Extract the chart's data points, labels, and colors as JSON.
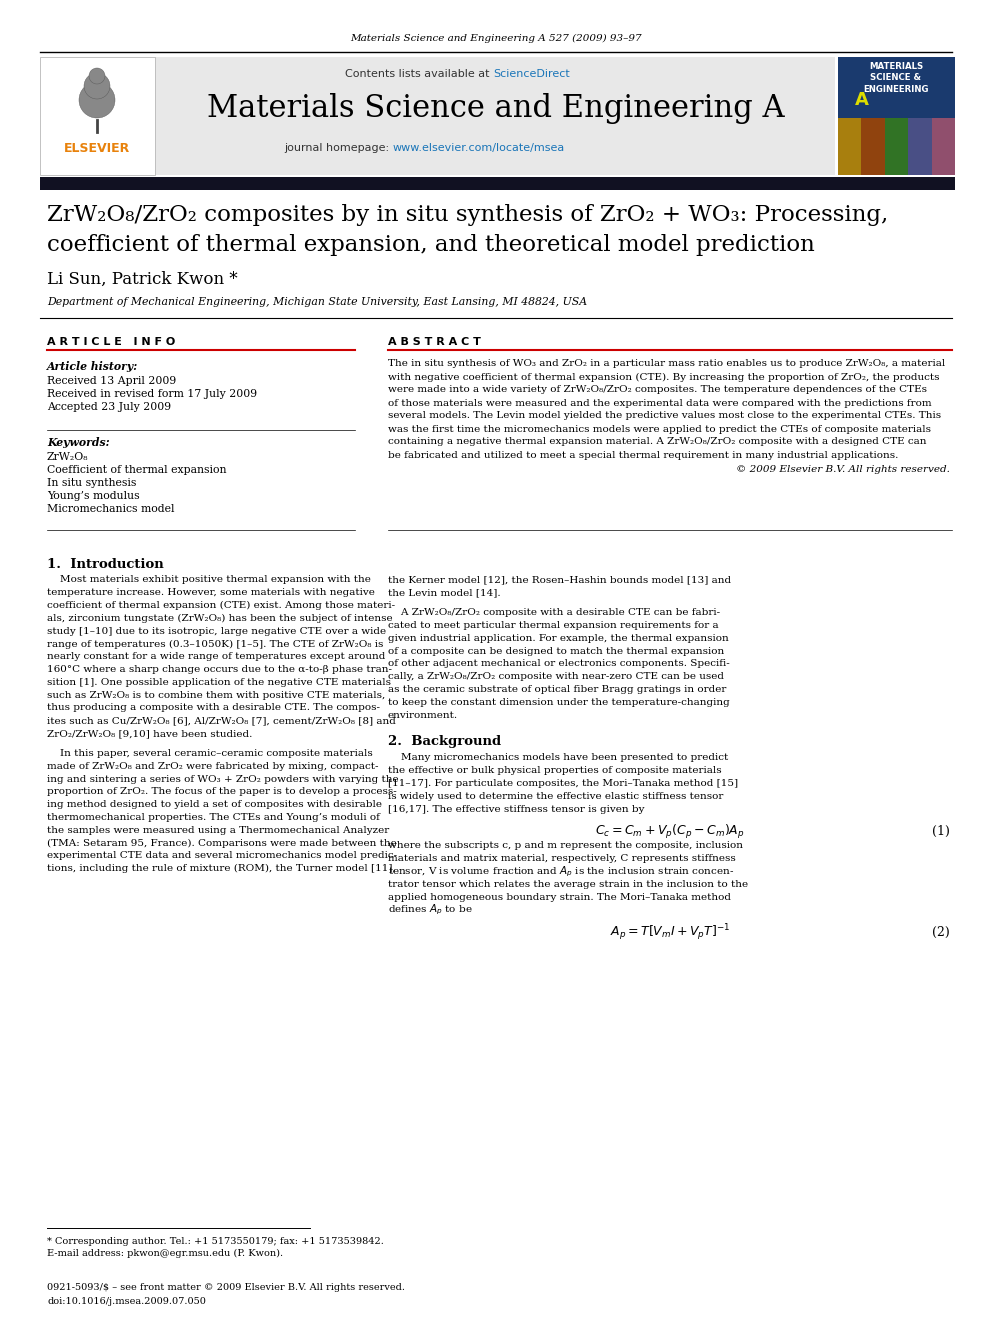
{
  "journal_ref": "Materials Science and Engineering A 527 (2009) 93–97",
  "contents_line": "Contents lists available at ",
  "sciencedirect": "ScienceDirect",
  "journal_name": "Materials Science and Engineering A",
  "journal_homepage_prefix": "journal homepage: ",
  "journal_url": "www.elsevier.com/locate/msea",
  "title_line1": "ZrW₂O₈/ZrO₂ composites by in situ synthesis of ZrO₂ + WO₃: Processing,",
  "title_line2": "coefficient of thermal expansion, and theoretical model prediction",
  "authors": "Li Sun, Patrick Kwon *",
  "affiliation": "Department of Mechanical Engineering, Michigan State University, East Lansing, MI 48824, USA",
  "article_info_title": "A R T I C L E   I N F O",
  "abstract_title": "A B S T R A C T",
  "article_history_label": "Article history:",
  "received1": "Received 13 April 2009",
  "received2": "Received in revised form 17 July 2009",
  "accepted": "Accepted 23 July 2009",
  "keywords_label": "Keywords:",
  "keyword1": "ZrW₂O₈",
  "keyword2": "Coefficient of thermal expansion",
  "keyword3": "In situ synthesis",
  "keyword4": "Young’s modulus",
  "keyword5": "Micromechanics model",
  "copyright": "© 2009 Elsevier B.V. All rights reserved.",
  "section1_title": "1.  Introduction",
  "section2_title": "2.  Background",
  "eq1_number": "(1)",
  "eq2_number": "(2)",
  "footnote_star": "* Corresponding author. Tel.: +1 5173550179; fax: +1 5173539842.",
  "footnote_email": "E-mail address: pkwon@egr.msu.edu (P. Kwon).",
  "footer_issn": "0921-5093/$ – see front matter © 2009 Elsevier B.V. All rights reserved.",
  "footer_doi": "doi:10.1016/j.msea.2009.07.050",
  "header_bg": "#e8e8e8",
  "blue_color": "#1a75b8",
  "red_color": "#cc0000"
}
